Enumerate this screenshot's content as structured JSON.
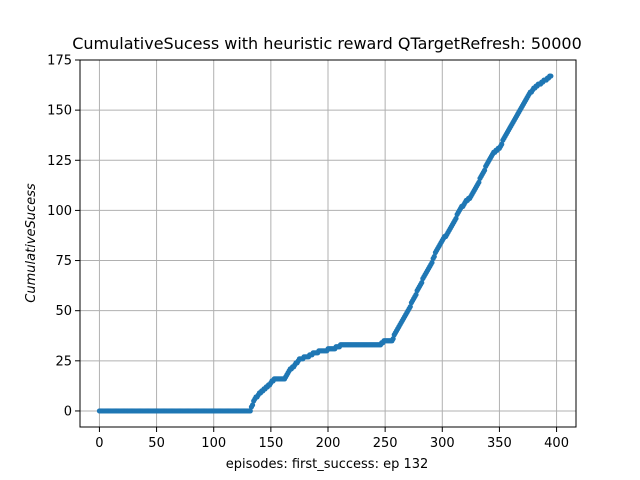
{
  "chart_data": {
    "type": "scatter",
    "title": "CumulativeSucess with heuristic reward QTargetRefresh: 50000",
    "xlabel": "episodes: first_success: ep 132",
    "ylabel": "CumulativeSucess",
    "xlim": [
      -17,
      417
    ],
    "ylim": [
      -8,
      175
    ],
    "xticks": [
      0,
      50,
      100,
      150,
      200,
      250,
      300,
      350,
      400
    ],
    "yticks": [
      0,
      25,
      50,
      75,
      100,
      125,
      150,
      175
    ],
    "grid": true,
    "series": [
      {
        "color": "#1f77b4",
        "points": [
          [
            0,
            0
          ],
          [
            132,
            0
          ],
          [
            135,
            5
          ],
          [
            140,
            9
          ],
          [
            145,
            11
          ],
          [
            150,
            14
          ],
          [
            153,
            16
          ],
          [
            162,
            16
          ],
          [
            166,
            20
          ],
          [
            170,
            22
          ],
          [
            175,
            26
          ],
          [
            182,
            27
          ],
          [
            188,
            29
          ],
          [
            195,
            30
          ],
          [
            205,
            31
          ],
          [
            212,
            33
          ],
          [
            220,
            33
          ],
          [
            245,
            33
          ],
          [
            250,
            35
          ],
          [
            256,
            35
          ],
          [
            260,
            40
          ],
          [
            265,
            45
          ],
          [
            270,
            50
          ],
          [
            275,
            56
          ],
          [
            280,
            62
          ],
          [
            285,
            68
          ],
          [
            290,
            73
          ],
          [
            295,
            80
          ],
          [
            300,
            85
          ],
          [
            305,
            89
          ],
          [
            310,
            94
          ],
          [
            315,
            100
          ],
          [
            320,
            104
          ],
          [
            325,
            107
          ],
          [
            330,
            112
          ],
          [
            335,
            118
          ],
          [
            340,
            124
          ],
          [
            345,
            129
          ],
          [
            350,
            131
          ],
          [
            355,
            137
          ],
          [
            360,
            142
          ],
          [
            365,
            147
          ],
          [
            370,
            152
          ],
          [
            375,
            157
          ],
          [
            380,
            161
          ],
          [
            385,
            163
          ],
          [
            390,
            165
          ],
          [
            395,
            167
          ]
        ]
      }
    ]
  }
}
